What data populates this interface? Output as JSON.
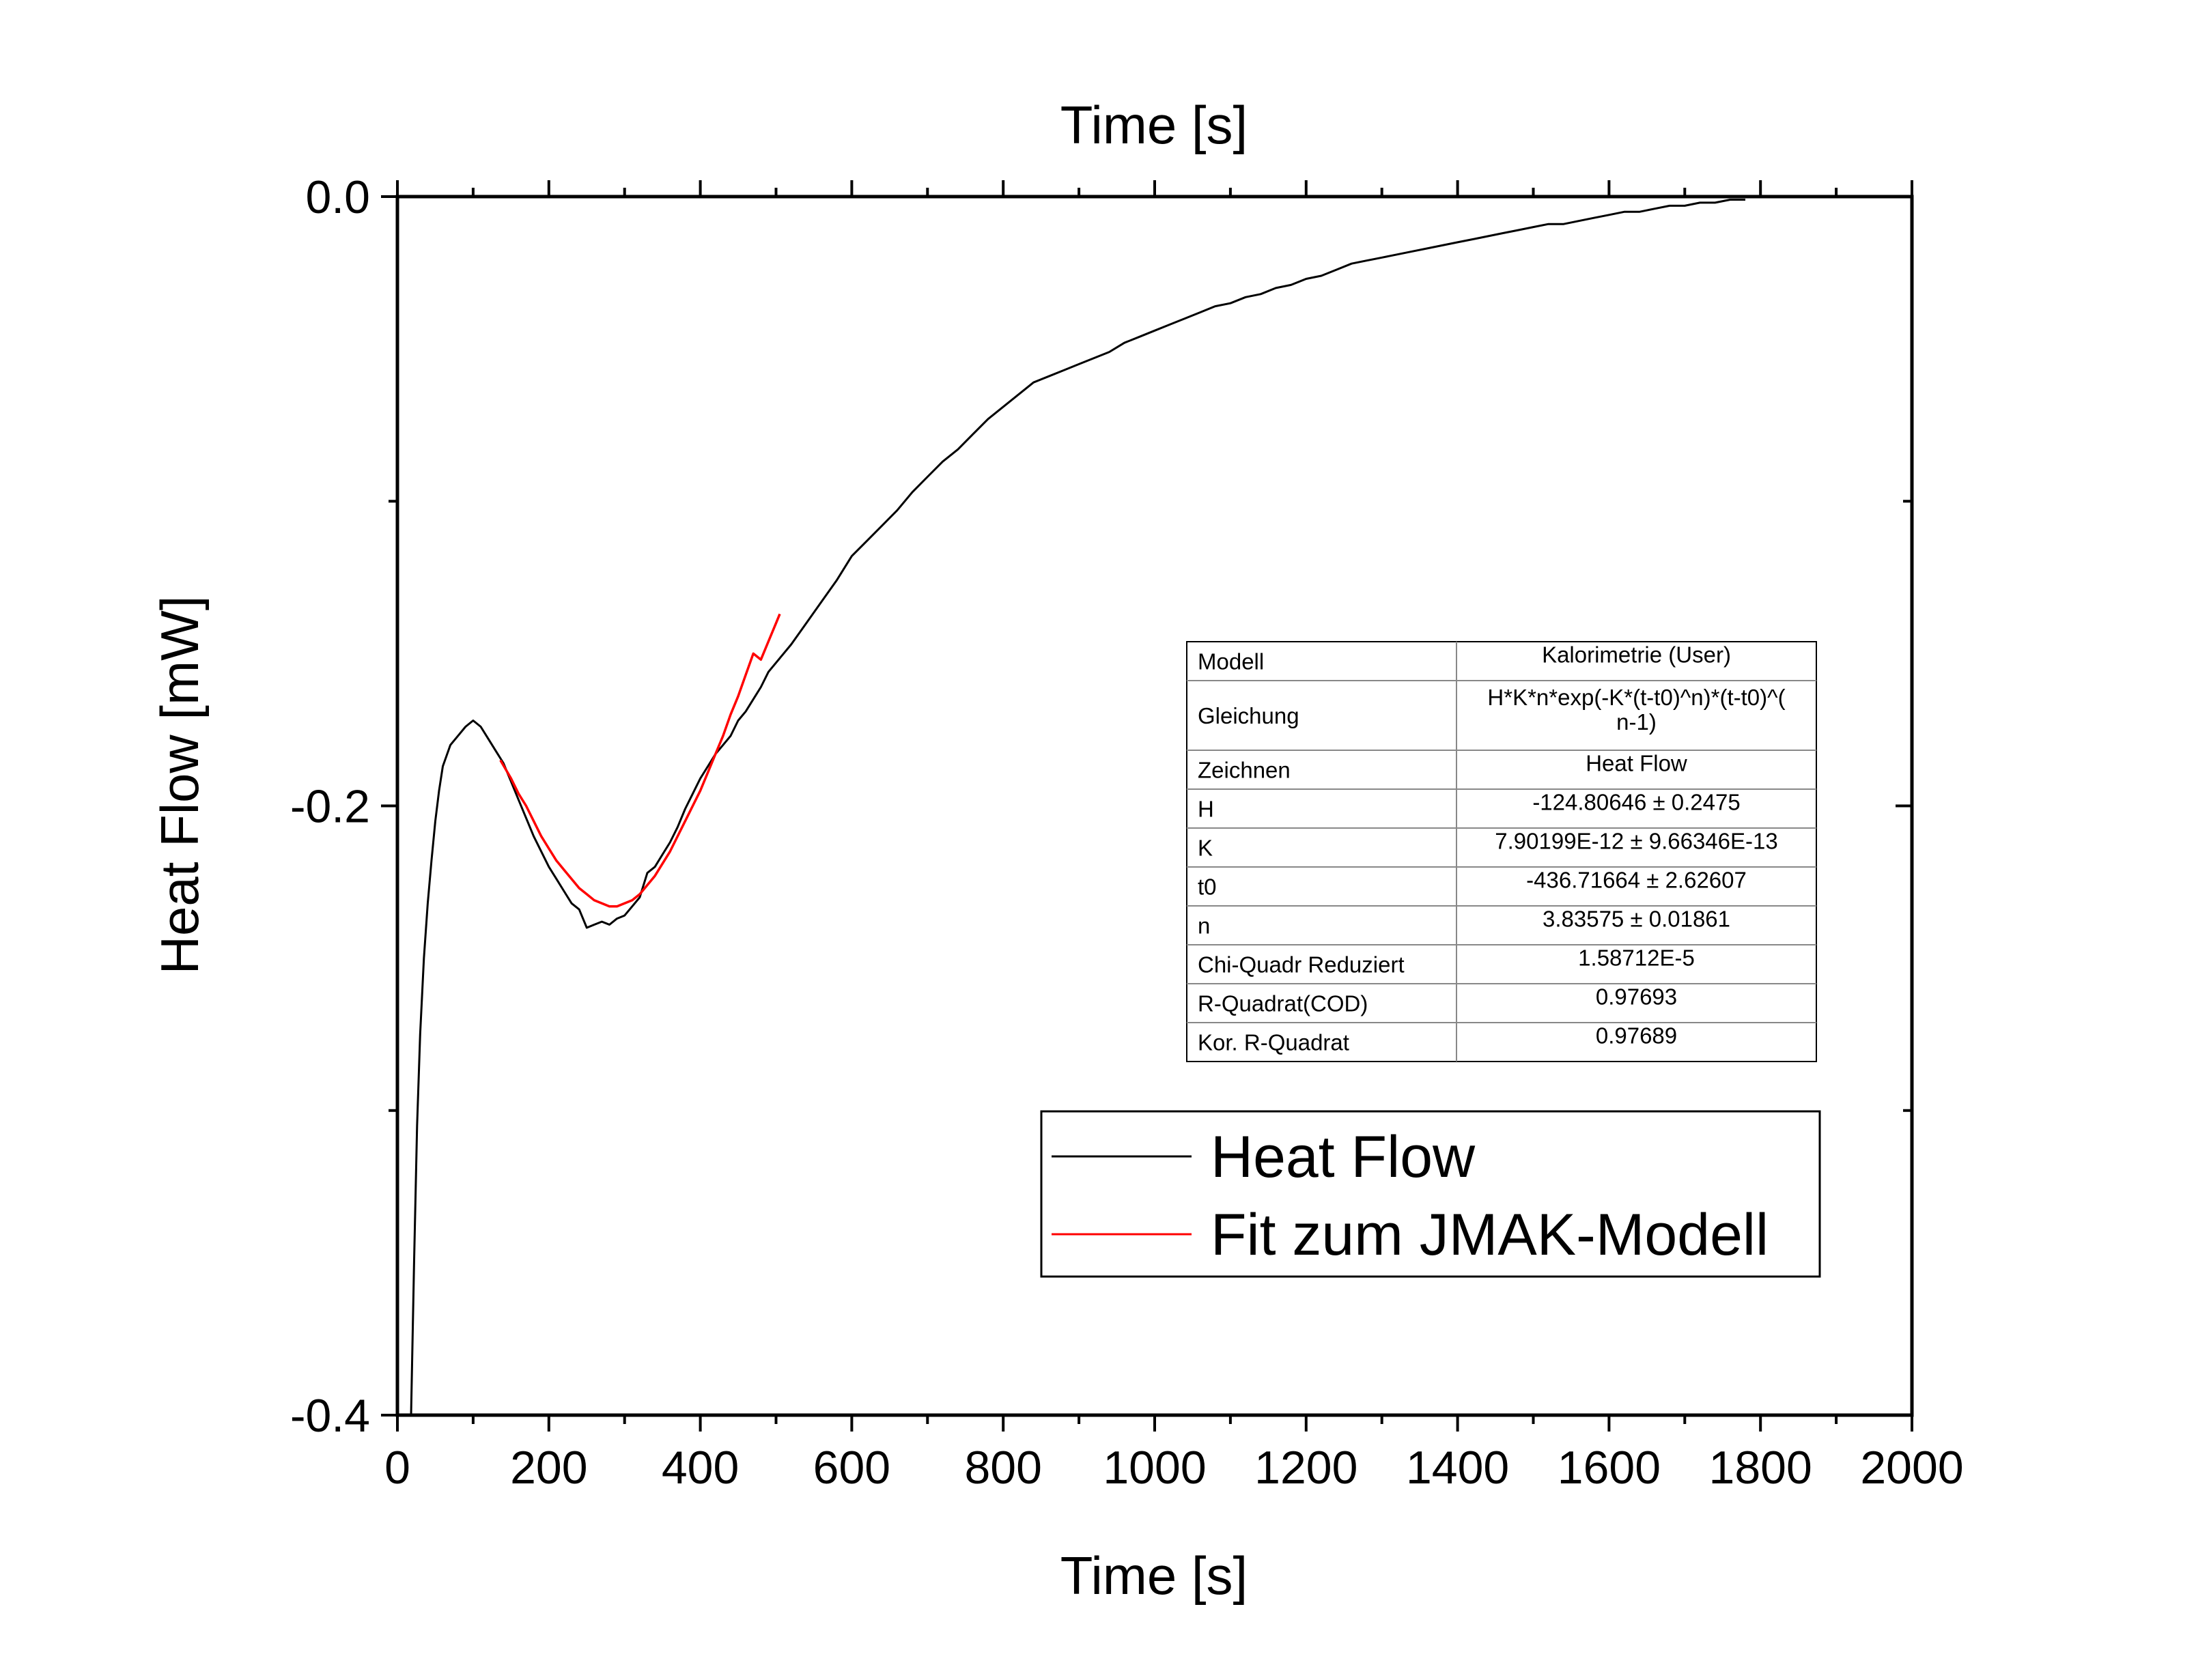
{
  "chart_data": {
    "type": "line",
    "xlabel_bottom": "Time [s]",
    "xlabel_top": "Time [s]",
    "ylabel": "Heat Flow [mW]",
    "xlim": [
      0,
      2000
    ],
    "ylim": [
      -0.4,
      0.0
    ],
    "x_ticks": [
      0,
      200,
      400,
      600,
      800,
      1000,
      1200,
      1400,
      1600,
      1800,
      2000
    ],
    "y_ticks": [
      -0.4,
      -0.2,
      0.0
    ],
    "x_tick_labels": [
      "0",
      "200",
      "400",
      "600",
      "800",
      "1000",
      "1200",
      "1400",
      "1600",
      "1800",
      "2000"
    ],
    "y_tick_labels": [
      "-0.4",
      "-0.2",
      "0.0"
    ],
    "grid": false,
    "legend_position": "bottom-right",
    "series": [
      {
        "name": "Heat Flow",
        "color": "#000000",
        "x": [
          18,
          22,
          26,
          30,
          35,
          40,
          45,
          50,
          55,
          60,
          70,
          80,
          90,
          100,
          110,
          120,
          130,
          140,
          150,
          160,
          170,
          180,
          190,
          200,
          210,
          220,
          230,
          240,
          250,
          260,
          270,
          280,
          290,
          300,
          310,
          320,
          330,
          340,
          350,
          360,
          370,
          380,
          390,
          400,
          410,
          420,
          430,
          440,
          450,
          460,
          470,
          480,
          490,
          500,
          520,
          540,
          560,
          580,
          600,
          620,
          640,
          660,
          680,
          700,
          720,
          740,
          760,
          780,
          800,
          820,
          840,
          860,
          880,
          900,
          920,
          940,
          960,
          980,
          1000,
          1020,
          1040,
          1060,
          1080,
          1100,
          1120,
          1140,
          1160,
          1180,
          1200,
          1220,
          1240,
          1260,
          1280,
          1300,
          1320,
          1340,
          1360,
          1380,
          1400,
          1420,
          1440,
          1460,
          1480,
          1500,
          1520,
          1540,
          1560,
          1580,
          1600,
          1620,
          1640,
          1660,
          1680,
          1700,
          1720,
          1740,
          1760,
          1780
        ],
        "y": [
          -0.4,
          -0.35,
          -0.305,
          -0.275,
          -0.25,
          -0.232,
          -0.218,
          -0.205,
          -0.195,
          -0.187,
          -0.18,
          -0.177,
          -0.174,
          -0.172,
          -0.174,
          -0.178,
          -0.182,
          -0.186,
          -0.192,
          -0.198,
          -0.204,
          -0.21,
          -0.215,
          -0.22,
          -0.224,
          -0.228,
          -0.232,
          -0.234,
          -0.24,
          -0.239,
          -0.238,
          -0.239,
          -0.237,
          -0.236,
          -0.233,
          -0.23,
          -0.222,
          -0.22,
          -0.216,
          -0.212,
          -0.207,
          -0.201,
          -0.196,
          -0.191,
          -0.187,
          -0.183,
          -0.18,
          -0.177,
          -0.172,
          -0.169,
          -0.165,
          -0.161,
          -0.156,
          -0.153,
          -0.147,
          -0.14,
          -0.133,
          -0.126,
          -0.118,
          -0.113,
          -0.108,
          -0.103,
          -0.097,
          -0.092,
          -0.087,
          -0.083,
          -0.078,
          -0.073,
          -0.069,
          -0.065,
          -0.061,
          -0.059,
          -0.057,
          -0.055,
          -0.053,
          -0.051,
          -0.048,
          -0.046,
          -0.044,
          -0.042,
          -0.04,
          -0.038,
          -0.036,
          -0.035,
          -0.033,
          -0.032,
          -0.03,
          -0.029,
          -0.027,
          -0.026,
          -0.024,
          -0.022,
          -0.021,
          -0.02,
          -0.019,
          -0.018,
          -0.017,
          -0.016,
          -0.015,
          -0.014,
          -0.013,
          -0.012,
          -0.011,
          -0.01,
          -0.009,
          -0.009,
          -0.008,
          -0.007,
          -0.006,
          -0.005,
          -0.005,
          -0.004,
          -0.003,
          -0.003,
          -0.002,
          -0.002,
          -0.001,
          -0.001
        ]
      },
      {
        "name": "Fit zum JMAK-Modell",
        "color": "#ff0000",
        "x": [
          136,
          150,
          160,
          170,
          180,
          190,
          200,
          210,
          220,
          230,
          240,
          250,
          260,
          270,
          280,
          290,
          300,
          310,
          320,
          330,
          340,
          350,
          360,
          370,
          380,
          390,
          400,
          410,
          420,
          430,
          440,
          450,
          460,
          470,
          480,
          490,
          500,
          505
        ],
        "y": [
          -0.185,
          -0.191,
          -0.196,
          -0.2,
          -0.205,
          -0.21,
          -0.214,
          -0.218,
          -0.221,
          -0.224,
          -0.227,
          -0.229,
          -0.231,
          -0.232,
          -0.233,
          -0.233,
          -0.232,
          -0.231,
          -0.229,
          -0.226,
          -0.223,
          -0.219,
          -0.215,
          -0.21,
          -0.205,
          -0.2,
          -0.195,
          -0.189,
          -0.183,
          -0.177,
          -0.17,
          -0.164,
          -0.157,
          -0.15,
          -0.152,
          -0.146,
          -0.14,
          -0.137
        ]
      }
    ],
    "results_table": [
      [
        "Modell",
        "Kalorimetrie (User)"
      ],
      [
        "Gleichung",
        "H*K*n*exp(-K*(t-t0)^n)*(t-t0)^(",
        "n-1)"
      ],
      [
        "Zeichnen",
        "Heat Flow"
      ],
      [
        "H",
        "-124.80646 ± 0.2475"
      ],
      [
        "K",
        "7.90199E-12 ± 9.66346E-13"
      ],
      [
        "t0",
        "-436.71664 ± 2.62607"
      ],
      [
        "n",
        "3.83575 ± 0.01861"
      ],
      [
        "Chi-Quadr Reduziert",
        "1.58712E-5"
      ],
      [
        "R-Quadrat(COD)",
        "0.97693"
      ],
      [
        "Kor. R-Quadrat",
        "0.97689"
      ]
    ]
  }
}
